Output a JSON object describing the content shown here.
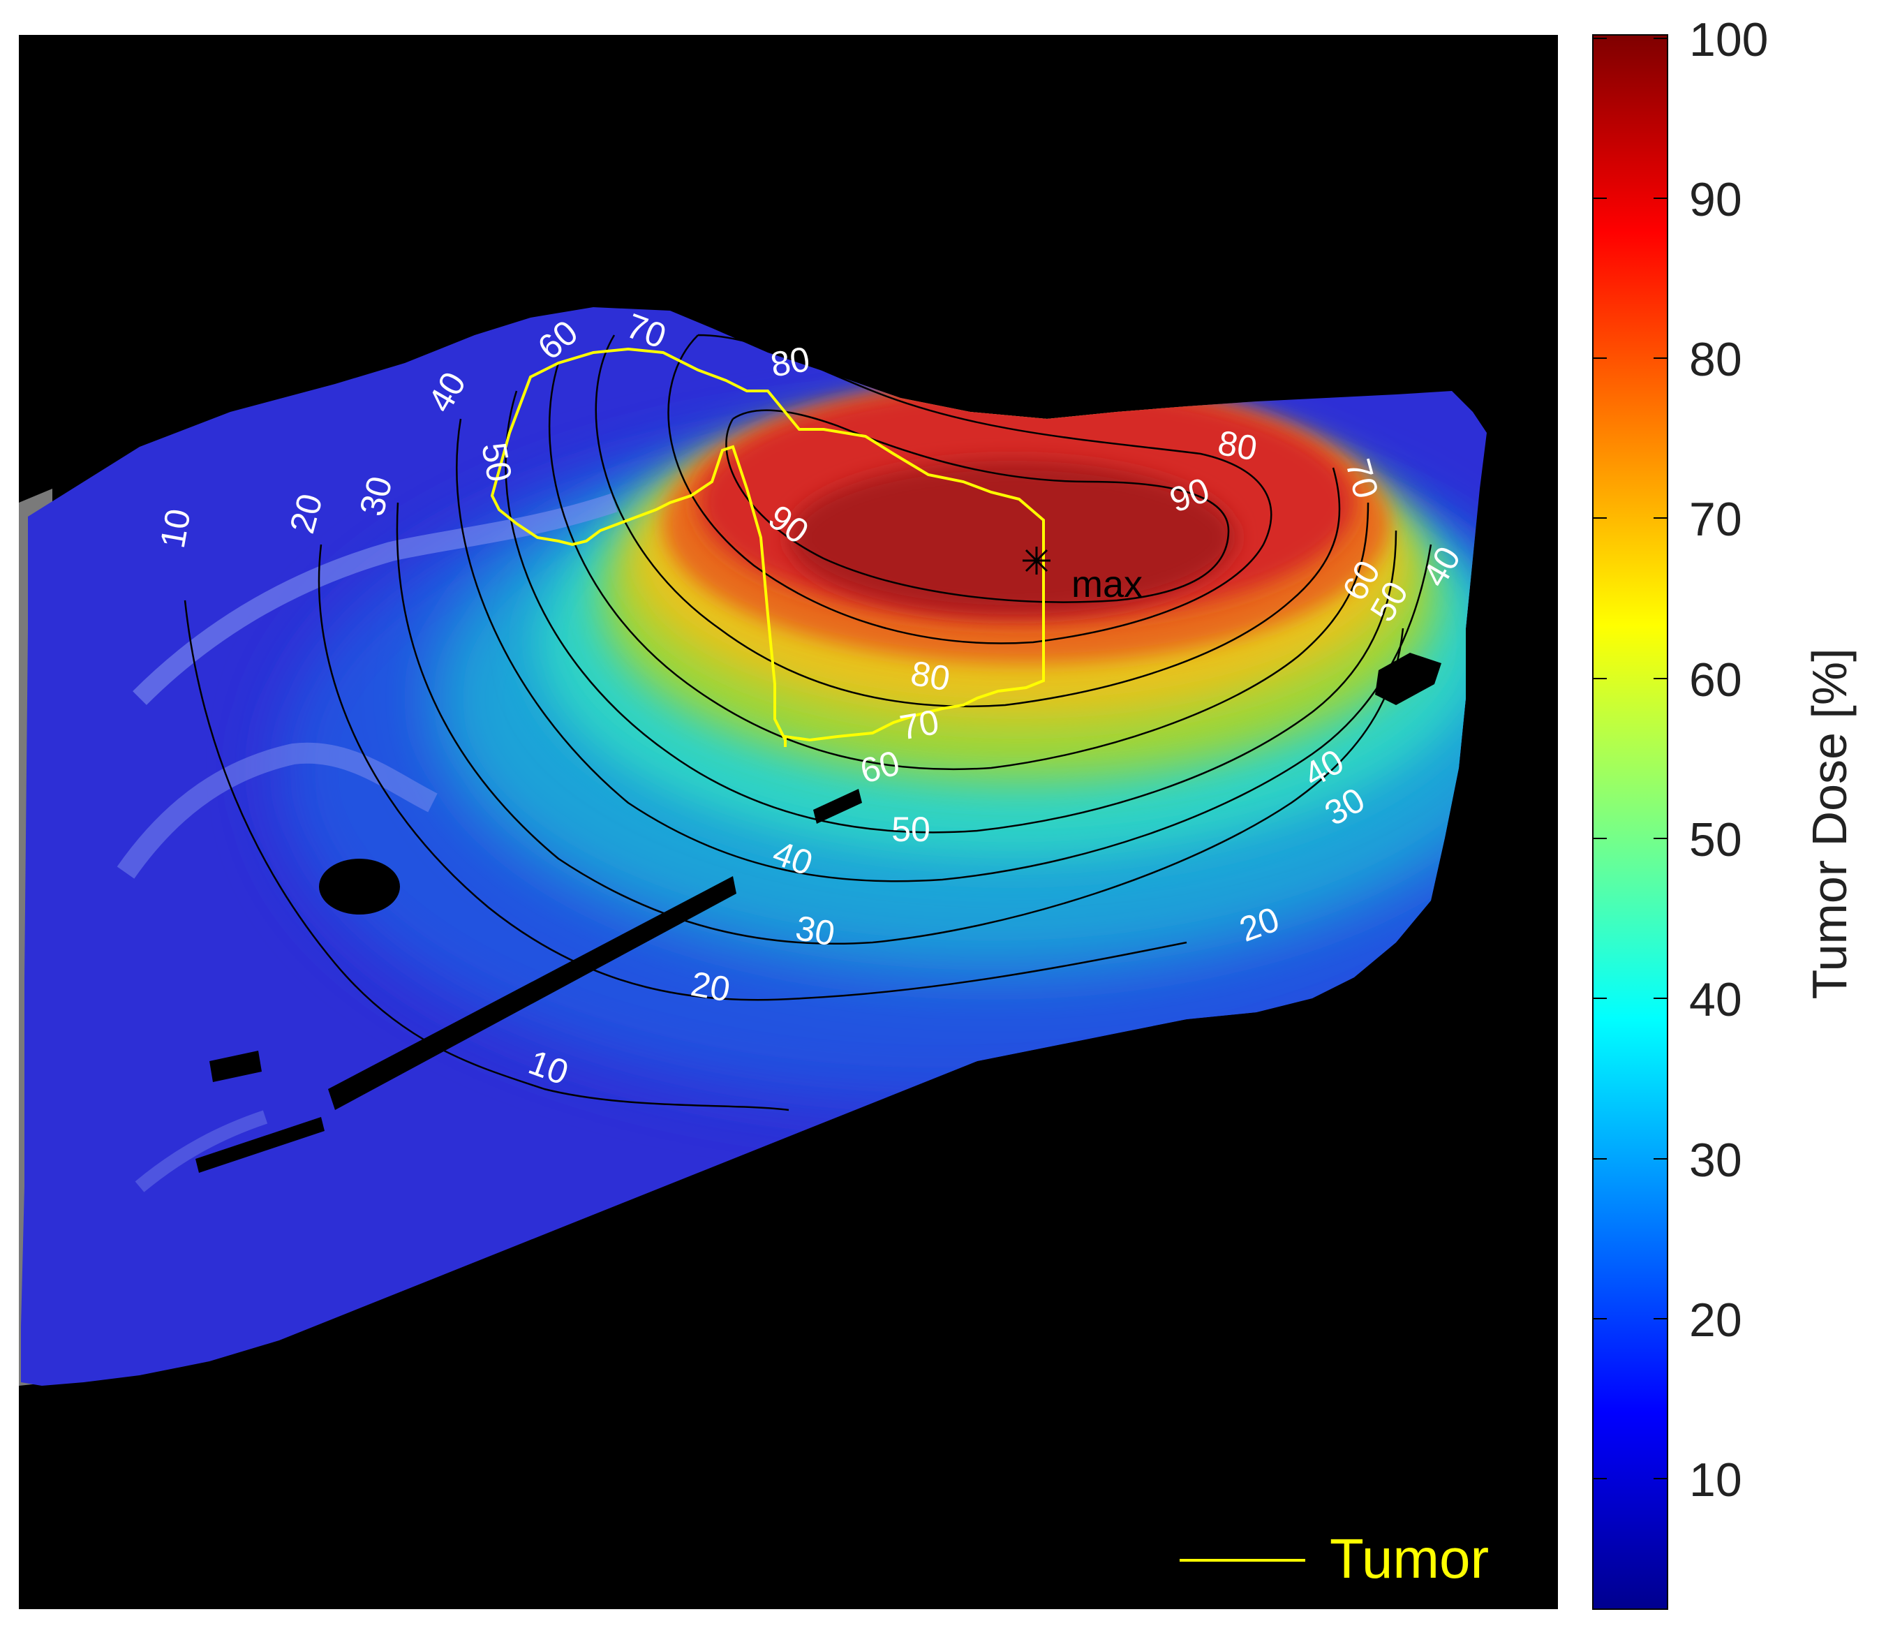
{
  "figure": {
    "max_label": "max",
    "legend_label": "Tumor",
    "colorbar": {
      "title": "Tumor Dose [%]",
      "ticks": [
        "100",
        "90",
        "80",
        "70",
        "60",
        "50",
        "40",
        "30",
        "20",
        "10"
      ]
    },
    "contour_labels": {
      "c10": "10",
      "c20": "20",
      "c30": "30",
      "c40": "40",
      "c50": "50",
      "c60": "60",
      "c70": "70",
      "c80": "80",
      "c90": "90"
    },
    "colors": {
      "tumor_outline": "#ffff00",
      "background": "#000000",
      "colormap": [
        "#00008f",
        "#0000ff",
        "#007fff",
        "#00ffff",
        "#7fff7f",
        "#ffff00",
        "#ff7f00",
        "#ff0000",
        "#7f0000"
      ]
    }
  }
}
